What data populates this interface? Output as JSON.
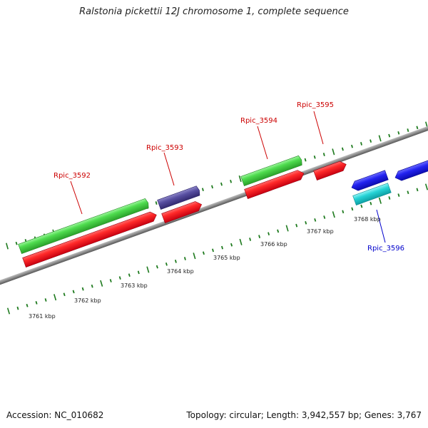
{
  "title": "Ralstonia pickettii 12J chromosome 1, complete sequence",
  "footer": {
    "accession": "Accession: NC_010682",
    "summary": "Topology: circular; Length: 3,942,557 bp; Genes: 3,767"
  },
  "colors": {
    "backbone": "#808080",
    "tick": "#1e7a1e",
    "cds_red": "#e8001a",
    "cds_green": "#3ccc3c",
    "cds_purple": "#4a3f8f",
    "cds_blue": "#1a1ae6",
    "cds_cyan": "#18c8cc",
    "label_red": "#cc0000",
    "label_blue": "#0000cc"
  },
  "scale_labels": [
    "3761 kbp",
    "3762 kbp",
    "3763 kbp",
    "3764 kbp",
    "3765 kbp",
    "3766 kbp",
    "3767 kbp",
    "3768 kbp"
  ],
  "gene_labels": [
    {
      "text": "Rpic_3592",
      "color": "red"
    },
    {
      "text": "Rpic_3593",
      "color": "red"
    },
    {
      "text": "Rpic_3594",
      "color": "red"
    },
    {
      "text": "Rpic_3595",
      "color": "red"
    },
    {
      "text": "Rpic_3596",
      "color": "blue"
    }
  ],
  "features": [
    {
      "row": "upper-green",
      "color": "cds_green",
      "strand": "+",
      "note": "Rpic_3592 gene"
    },
    {
      "row": "upper-red",
      "color": "cds_red",
      "strand": "+",
      "note": "Rpic_3592 CDS"
    },
    {
      "row": "upper-purple",
      "color": "cds_purple",
      "strand": "+",
      "note": "Rpic_3593 gene"
    },
    {
      "row": "upper-red",
      "color": "cds_red",
      "strand": "+",
      "note": "Rpic_3593 CDS"
    },
    {
      "row": "upper-green",
      "color": "cds_green",
      "strand": "+",
      "note": "Rpic_3594 gene"
    },
    {
      "row": "upper-red",
      "color": "cds_red",
      "strand": "+",
      "note": "Rpic_3594 CDS"
    },
    {
      "row": "upper-red",
      "color": "cds_red",
      "strand": "+",
      "note": "Rpic_3595 CDS"
    },
    {
      "row": "lower-blue",
      "color": "cds_blue",
      "strand": "-",
      "note": "Rpic_3596 gene"
    },
    {
      "row": "lower-cyan",
      "color": "cds_cyan",
      "strand": "-",
      "note": "Rpic_3596 CDS"
    },
    {
      "row": "lower-blue",
      "color": "cds_blue",
      "strand": "-",
      "note": "downstream gene"
    }
  ]
}
